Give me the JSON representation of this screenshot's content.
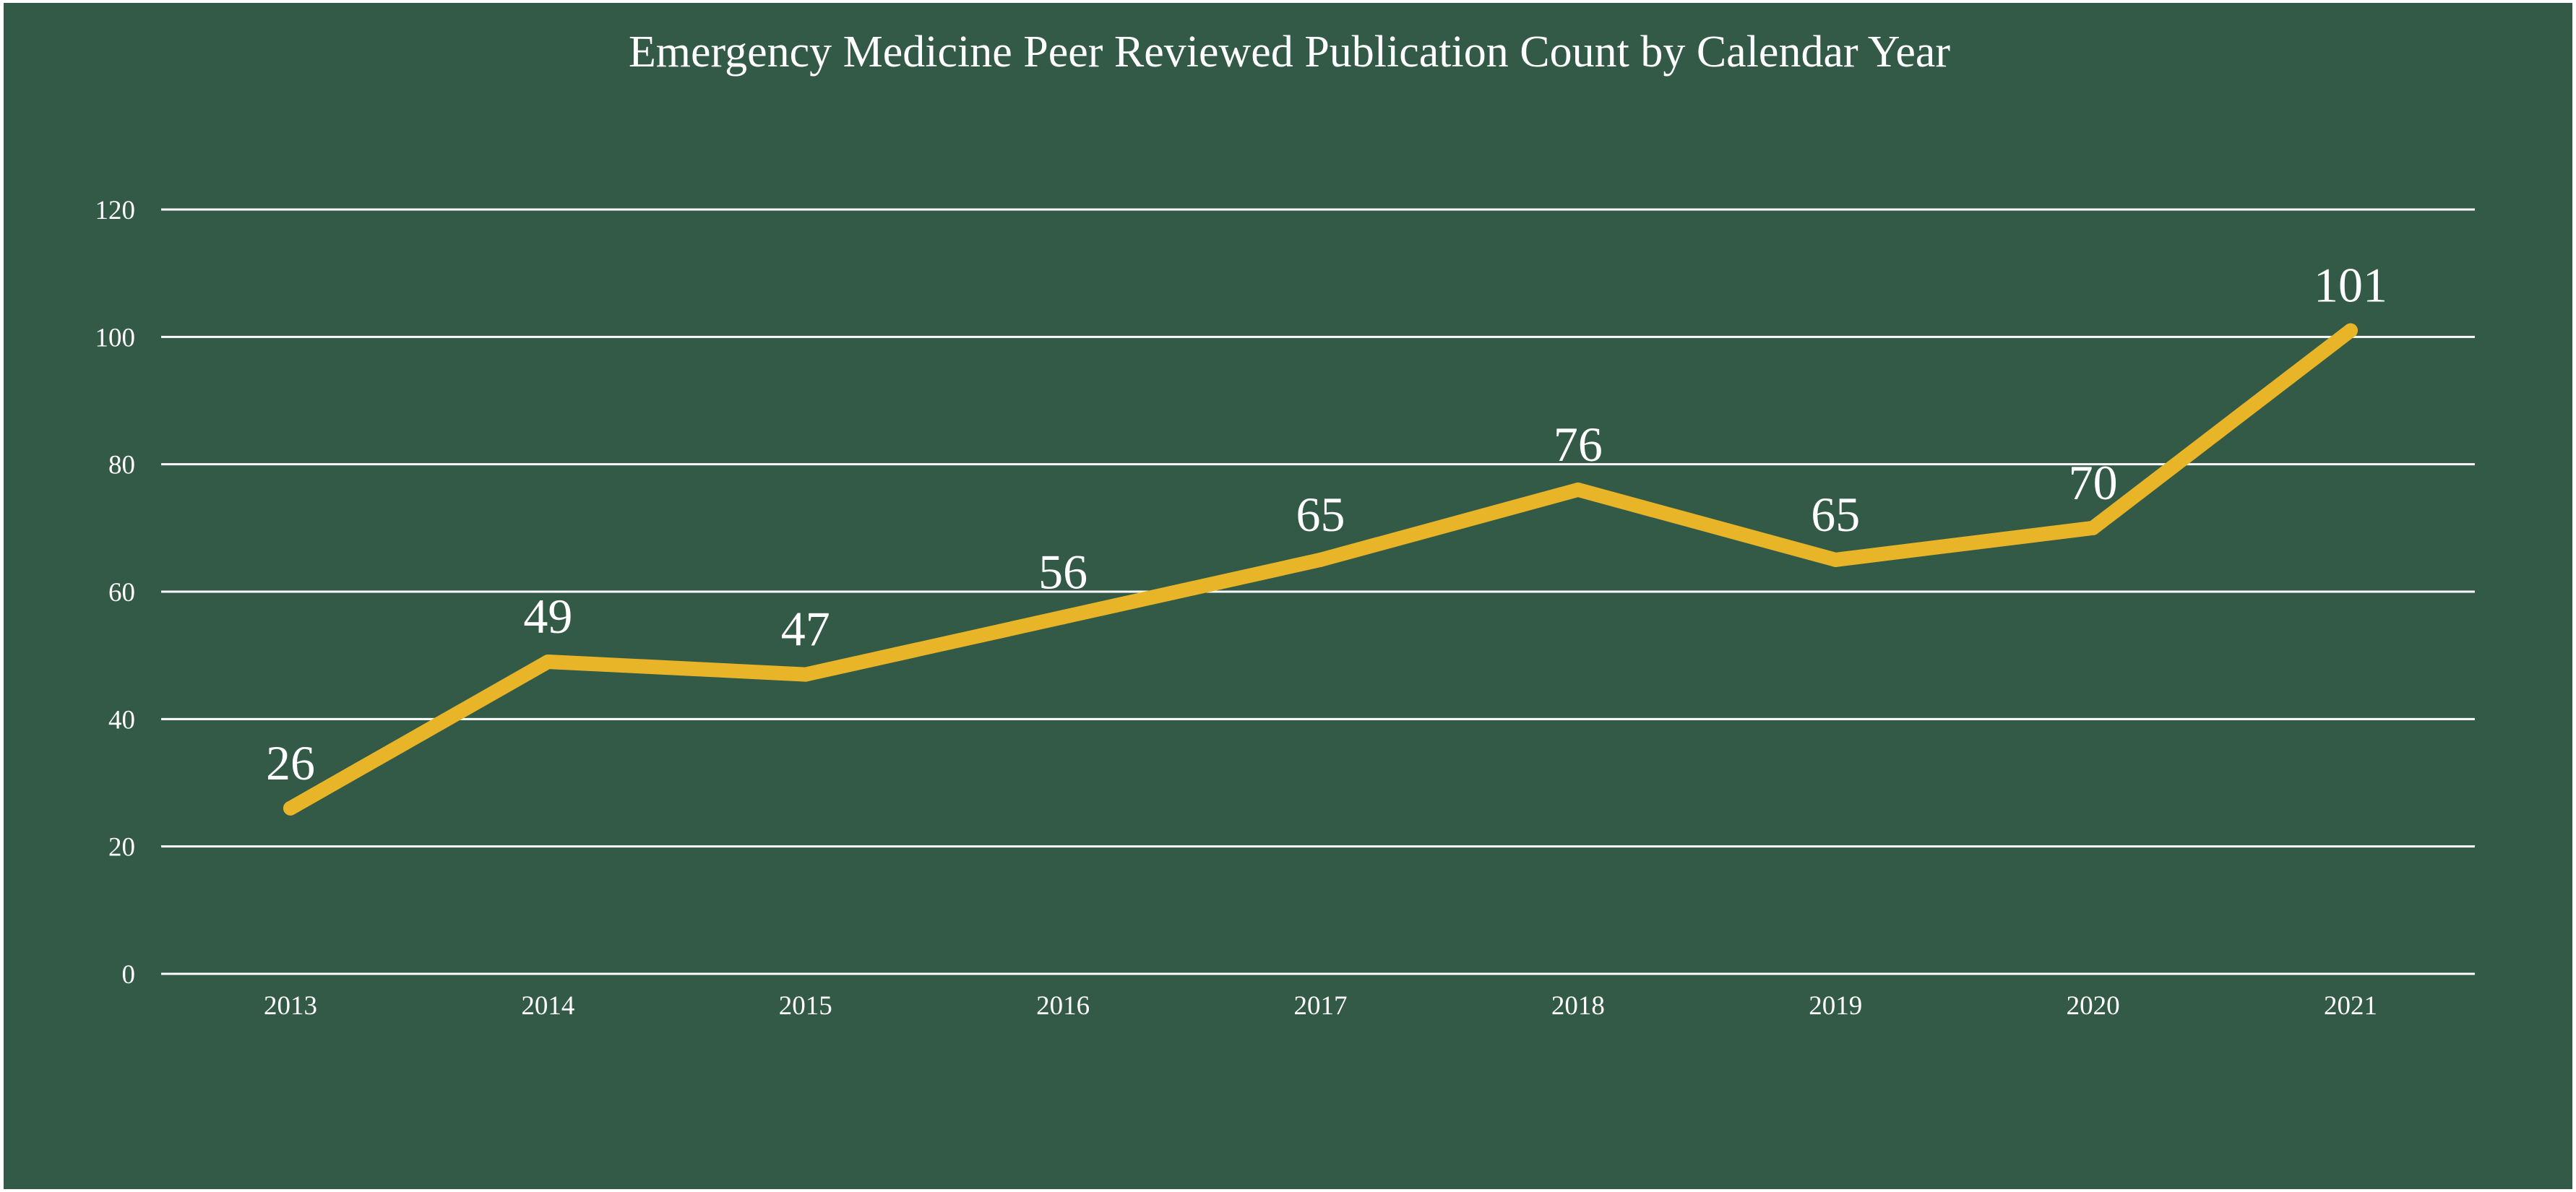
{
  "chart_data": {
    "type": "line",
    "title": "Emergency Medicine Peer Reviewed Publication Count by Calendar Year",
    "xlabel": "",
    "ylabel": "",
    "categories": [
      "2013",
      "2014",
      "2015",
      "2016",
      "2017",
      "2018",
      "2019",
      "2020",
      "2021"
    ],
    "values": [
      26,
      49,
      47,
      56,
      65,
      76,
      65,
      70,
      101
    ],
    "data_labels": [
      "26",
      "49",
      "47",
      "56",
      "65",
      "76",
      "65",
      "70",
      "101"
    ],
    "ylim": [
      0,
      120
    ],
    "y_ticks": [
      0,
      20,
      40,
      60,
      80,
      100,
      120
    ],
    "grid": true,
    "legend": "none",
    "colors": {
      "background": "#325a47",
      "line": "#e8b428",
      "grid": "#ffffff",
      "text": "#ffffff"
    }
  }
}
